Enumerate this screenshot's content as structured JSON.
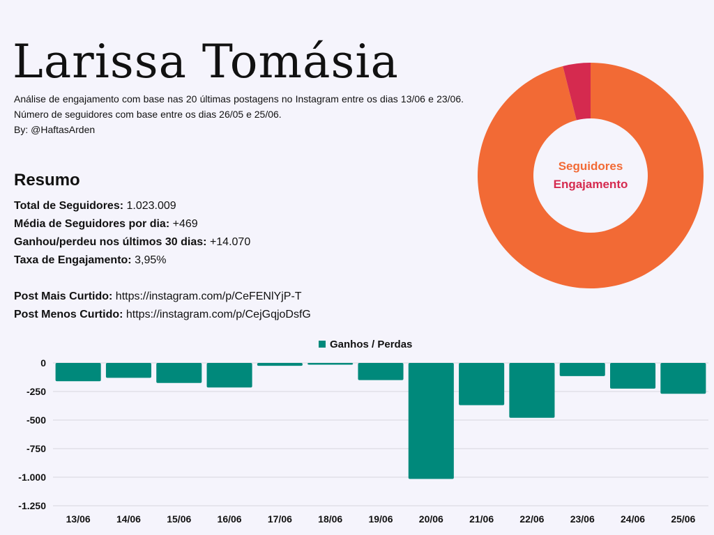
{
  "header": {
    "title": "Larissa Tomásia",
    "description": "Análise de engajamento com base nas 20 últimas postagens no Instagram entre os dias 13/06 e 23/06. Número de seguidores com base entre os dias 26/05 e 25/06.",
    "byline": "By: @HaftasArden"
  },
  "summary": {
    "heading": "Resumo",
    "stats": [
      {
        "label": "Total de Seguidores:",
        "value": "1.023.009"
      },
      {
        "label": "Média de Seguidores por dia:",
        "value": "+469"
      },
      {
        "label": "Ganhou/perdeu nos últimos 30 dias:",
        "value": "+14.070"
      },
      {
        "label": "Taxa de Engajamento:",
        "value": "3,95%"
      }
    ],
    "posts": [
      {
        "label": "Post Mais Curtido:",
        "value": "https://instagram.com/p/CeFENlYjP-T"
      },
      {
        "label": "Post Menos Curtido:",
        "value": "https://instagram.com/p/CejGqjoDsfG"
      }
    ]
  },
  "chart_data": [
    {
      "type": "pie",
      "donut": true,
      "labels": [
        "Seguidores",
        "Engajamento"
      ],
      "values": [
        96.05,
        3.95
      ],
      "colors": [
        "#f26a35",
        "#d52a4f"
      ]
    },
    {
      "type": "bar",
      "categories": [
        "13/06",
        "14/06",
        "15/06",
        "16/06",
        "17/06",
        "18/06",
        "19/06",
        "20/06",
        "21/06",
        "22/06",
        "23/06",
        "24/06",
        "25/06"
      ],
      "series": [
        {
          "name": "Ganhos / Perdas",
          "values": [
            -160,
            -130,
            -175,
            -215,
            -25,
            -15,
            -150,
            -1015,
            -370,
            -480,
            -115,
            -225,
            -270
          ],
          "color": "#00897b"
        }
      ],
      "ylim": [
        -1250,
        0
      ],
      "yticks": [
        0,
        -250,
        -500,
        -750,
        -1000,
        -1250
      ],
      "ytick_labels": [
        "0",
        "-250",
        "-500",
        "-750",
        "-1.000",
        "-1.250"
      ],
      "legend": "top-center",
      "grid": true
    }
  ]
}
